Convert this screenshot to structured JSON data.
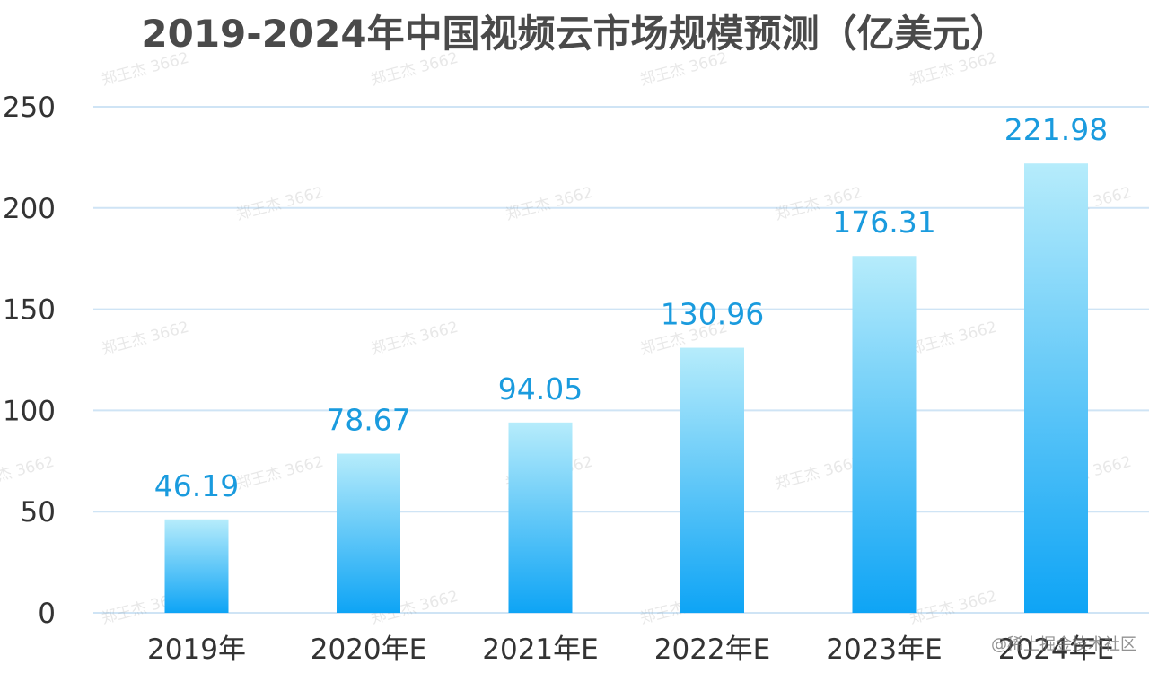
{
  "chart_data": {
    "type": "bar",
    "title": "2019-2024年中国视频云市场规模预测（亿美元）",
    "categories": [
      "2019年",
      "2020年E",
      "2021年E",
      "2022年E",
      "2023年E",
      "2024年E"
    ],
    "values": [
      46.19,
      78.67,
      94.05,
      130.96,
      176.31,
      221.98
    ],
    "data_labels": [
      "46.19",
      "78.67",
      "94.05",
      "130.96",
      "176.31",
      "221.98"
    ],
    "y_ticks": [
      "0",
      "50",
      "100",
      "150",
      "200",
      "250"
    ],
    "ylim": [
      0,
      250
    ],
    "xlabel": "",
    "ylabel": "",
    "grid": true,
    "legend": "none",
    "colors": {
      "bar_top": "#b6ecfb",
      "bar_bottom": "#0ea4f5",
      "data_label": "#1a9bde",
      "gridline": "#cfe4f5",
      "axis_text": "#333333",
      "title": "#4a4a4a"
    }
  },
  "watermarks": {
    "repeated": "郑王杰 3662",
    "corner": "@稀土掘金技术社区"
  }
}
